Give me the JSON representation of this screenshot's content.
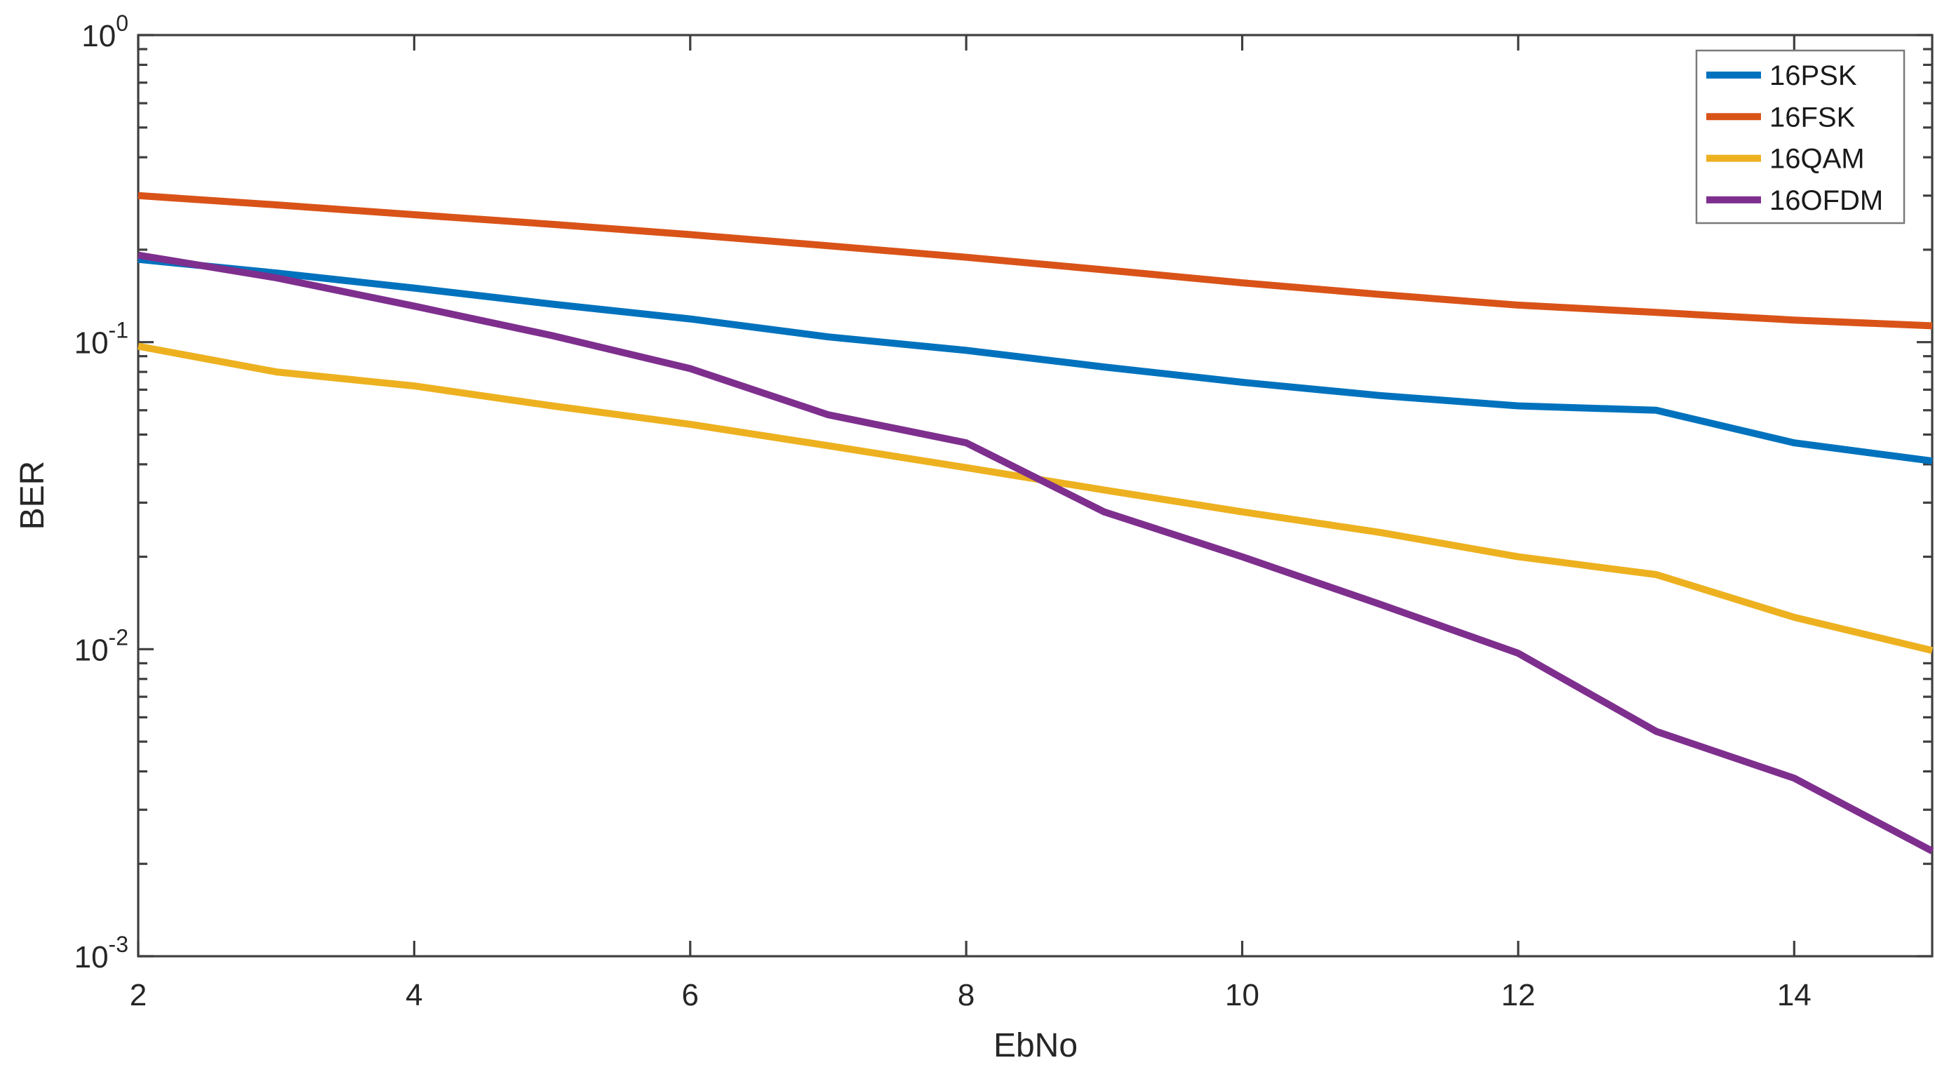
{
  "chart_data": {
    "type": "line",
    "title": "",
    "xlabel": "EbNo",
    "ylabel": "BER",
    "x_axis": {
      "min": 2,
      "max": 15,
      "major_ticks": [
        2,
        4,
        6,
        8,
        10,
        12,
        14
      ],
      "scale": "linear"
    },
    "y_axis": {
      "min": 0.001,
      "max": 1.0,
      "scale": "log10",
      "major_tick_exponents": [
        0,
        -1,
        -2,
        -3
      ],
      "minor_tick_multiples": [
        2,
        3,
        4,
        5,
        6,
        7,
        8,
        9
      ]
    },
    "grid": false,
    "legend_position": "top-right",
    "x": [
      2,
      3,
      4,
      5,
      6,
      7,
      8,
      9,
      10,
      11,
      12,
      13,
      14,
      15
    ],
    "series": [
      {
        "name": "16PSK",
        "color": "#0072BD",
        "values": [
          0.186,
          0.168,
          0.15,
          0.133,
          0.119,
          0.104,
          0.094,
          0.083,
          0.074,
          0.067,
          0.062,
          0.06,
          0.047,
          0.041
        ]
      },
      {
        "name": "16FSK",
        "color": "#D95319",
        "values": [
          0.3,
          0.28,
          0.26,
          0.242,
          0.224,
          0.206,
          0.189,
          0.172,
          0.156,
          0.143,
          0.132,
          0.125,
          0.118,
          0.113
        ]
      },
      {
        "name": "16QAM",
        "color": "#EDB120",
        "values": [
          0.097,
          0.08,
          0.072,
          0.062,
          0.054,
          0.046,
          0.039,
          0.033,
          0.028,
          0.024,
          0.02,
          0.0175,
          0.0127,
          0.0099
        ]
      },
      {
        "name": "16OFDM",
        "color": "#7E2F8E",
        "values": [
          0.192,
          0.162,
          0.131,
          0.105,
          0.082,
          0.058,
          0.047,
          0.028,
          0.02,
          0.014,
          0.0097,
          0.0054,
          0.0038,
          0.0022
        ]
      }
    ],
    "styles": {
      "frame_color": "#3f3f3f",
      "tick_label_color": "#262626",
      "axis_label_color": "#262626",
      "legend_border_color": "#7a7a7a",
      "legend_text_color": "#1a1a1a",
      "background": "#ffffff",
      "line_width": 10
    }
  }
}
